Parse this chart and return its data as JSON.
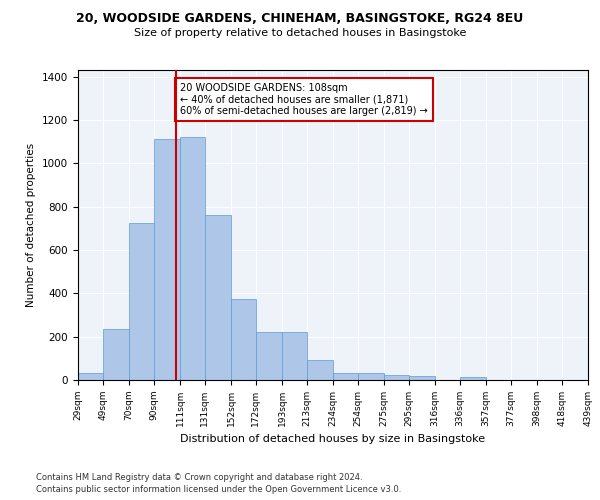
{
  "title_line1": "20, WOODSIDE GARDENS, CHINEHAM, BASINGSTOKE, RG24 8EU",
  "title_line2": "Size of property relative to detached houses in Basingstoke",
  "xlabel": "Distribution of detached houses by size in Basingstoke",
  "ylabel": "Number of detached properties",
  "bar_color": "#aec6e8",
  "bar_edge_color": "#5b9bd5",
  "background_color": "#eef2f9",
  "grid_color": "#ffffff",
  "vline_x": 108,
  "vline_color": "#cc0000",
  "annotation_text": "20 WOODSIDE GARDENS: 108sqm\n← 40% of detached houses are smaller (1,871)\n60% of semi-detached houses are larger (2,819) →",
  "annotation_box_color": "#cc0000",
  "footnote1": "Contains HM Land Registry data © Crown copyright and database right 2024.",
  "footnote2": "Contains public sector information licensed under the Open Government Licence v3.0.",
  "bin_edges": [
    29,
    49,
    70,
    90,
    111,
    131,
    152,
    172,
    193,
    213,
    234,
    254,
    275,
    295,
    316,
    336,
    357,
    377,
    398,
    418,
    439
  ],
  "bar_heights": [
    30,
    235,
    725,
    1110,
    1120,
    760,
    375,
    220,
    220,
    90,
    30,
    30,
    25,
    20,
    0,
    12,
    0,
    0,
    0,
    0
  ],
  "ylim": [
    0,
    1430
  ],
  "yticks": [
    0,
    200,
    400,
    600,
    800,
    1000,
    1200,
    1400
  ]
}
